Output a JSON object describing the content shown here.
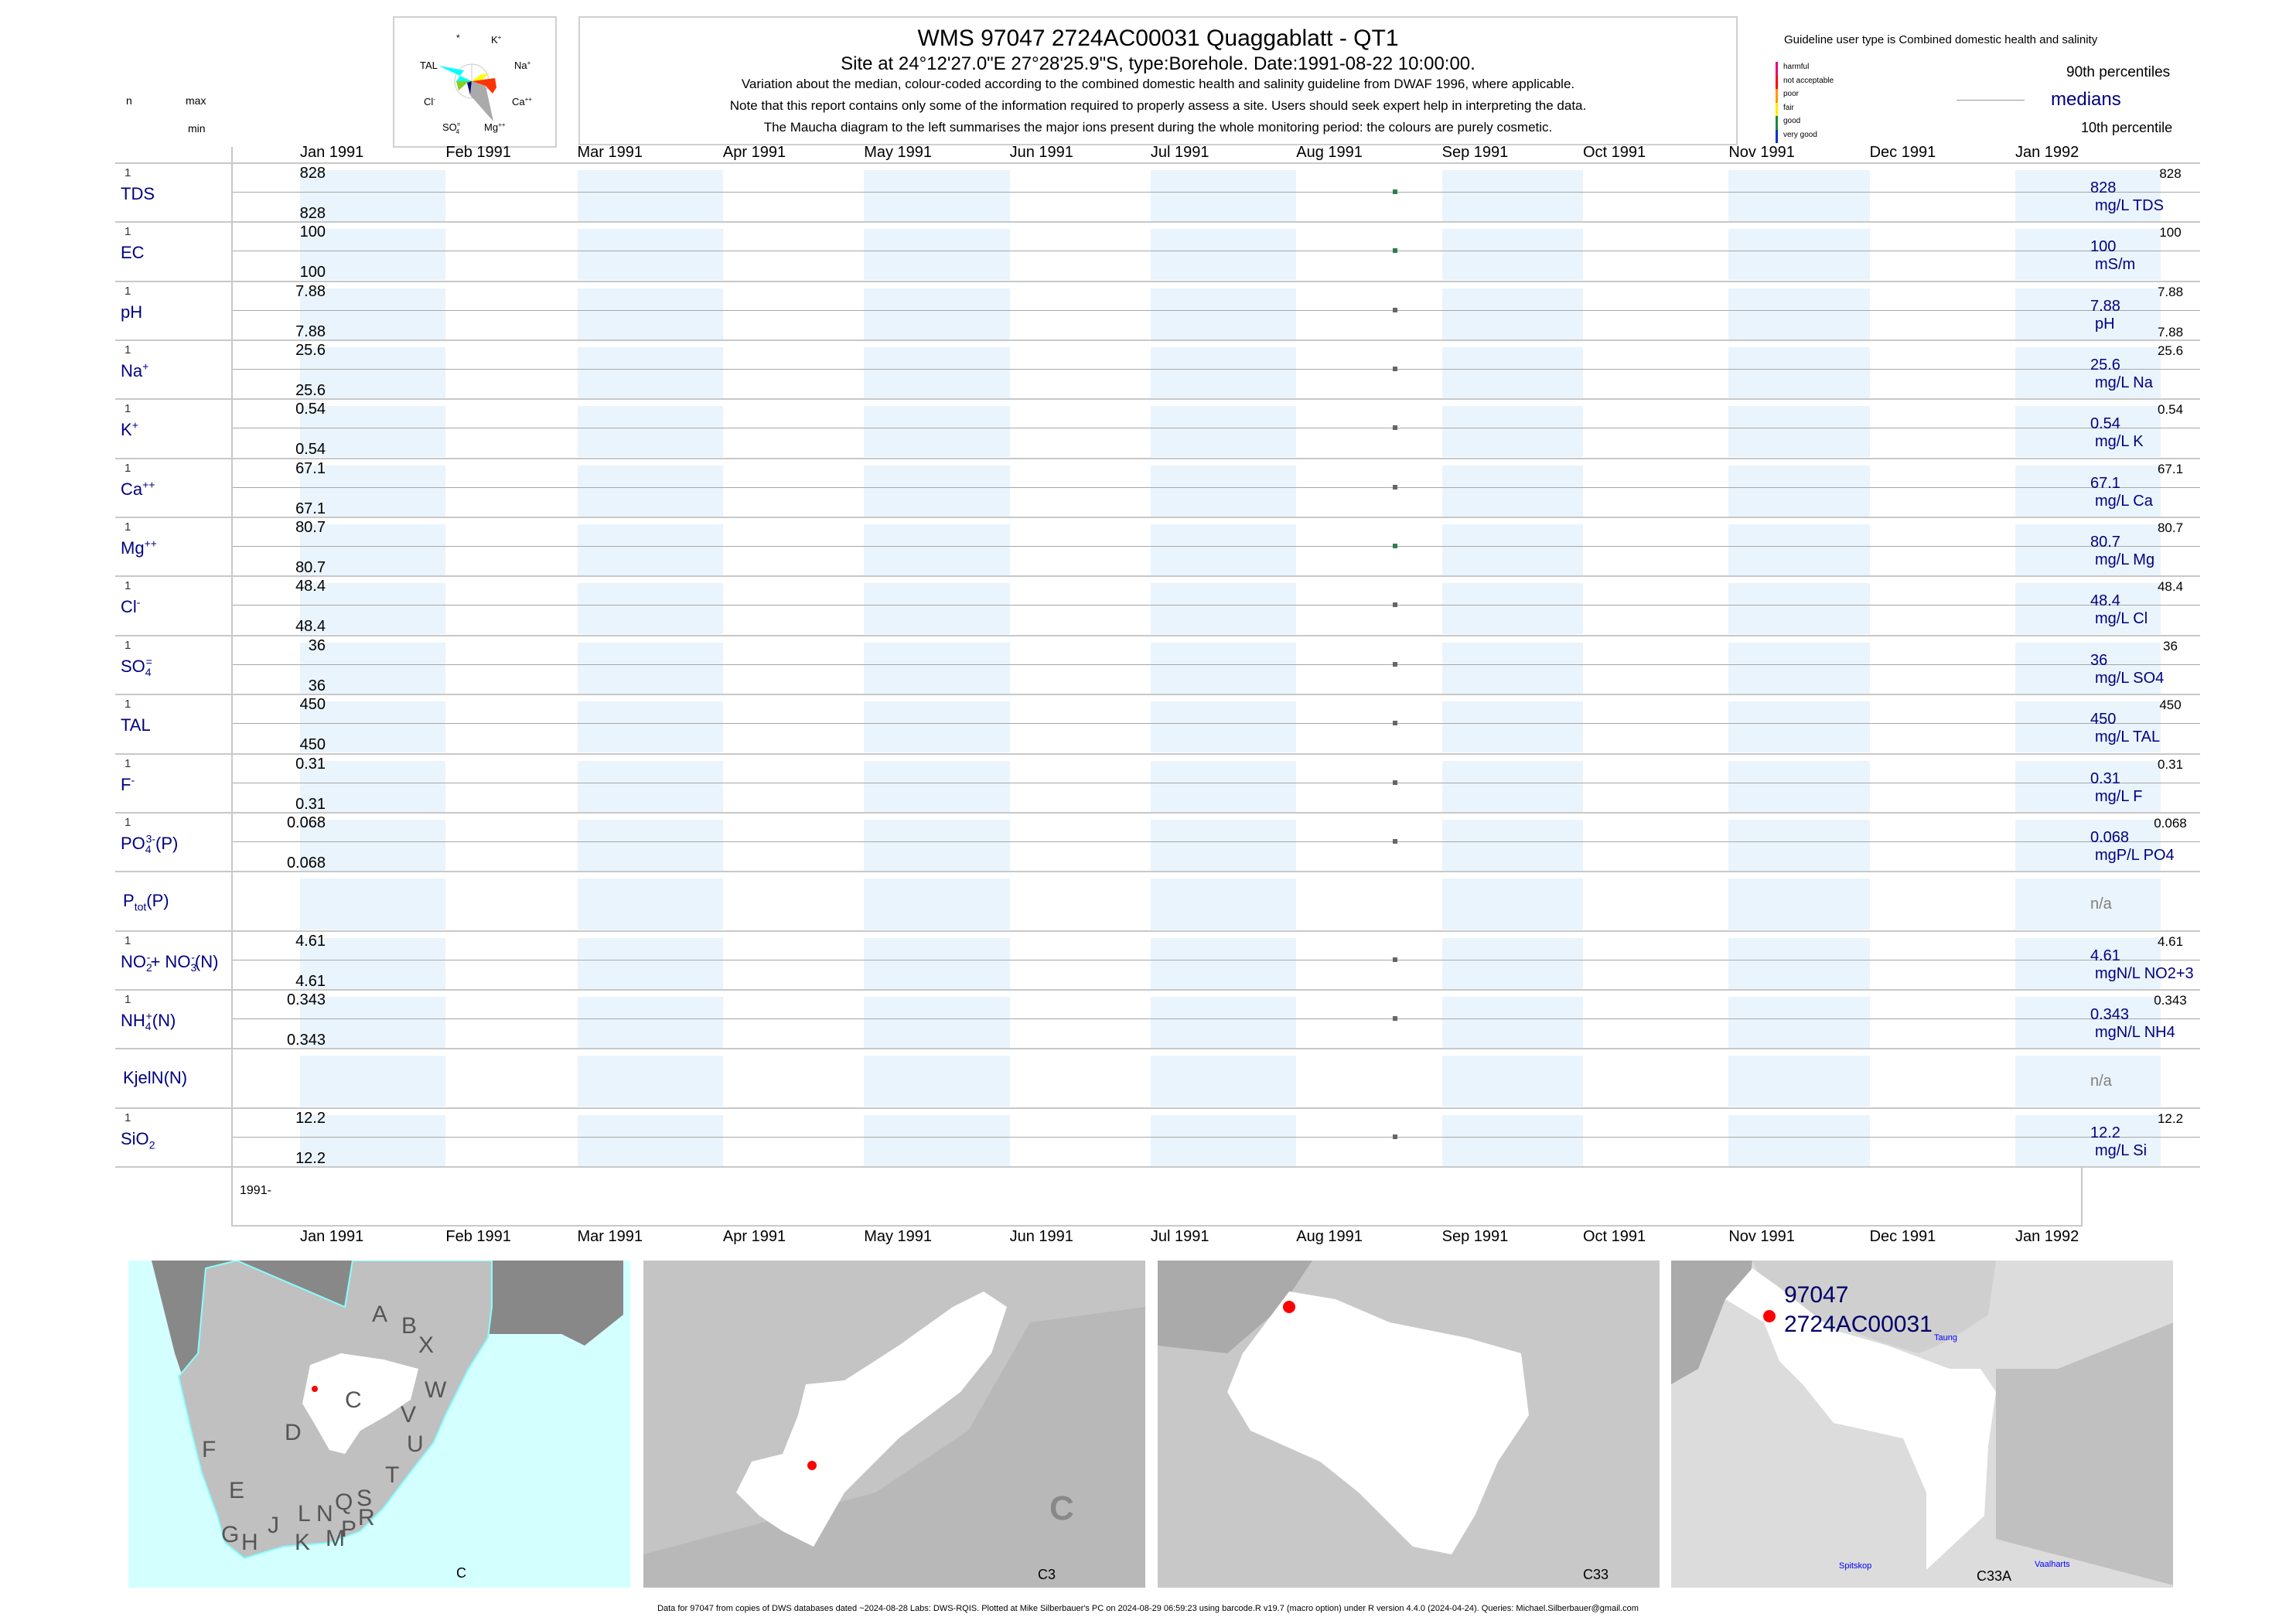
{
  "header": {
    "title": "WMS 97047 2724AC00031 Quaggablatt - QT1",
    "subtitle": "Site at 24°12'27.0\"E 27°28'25.9\"S, type:Borehole. Date:1991-08-22 10:00:00.",
    "line1": "Variation about the median,  colour-coded according to the combined domestic health and salinity guideline from DWAF 1996, where applicable.",
    "line2": "Note that this report contains only some of the information required to properly assess a site. Users should seek expert help in interpreting the data.",
    "line3": "The Maucha diagram to the left summarises the major ions present during the whole monitoring period: the colours are purely cosmetic."
  },
  "maucha": {
    "labels": {
      "star": "*",
      "k": "K",
      "k_sup": "+",
      "na": "Na",
      "na_sup": "+",
      "tal": "TAL",
      "cl": "Cl",
      "cl_sup": "-",
      "ca": "Ca",
      "ca_sup": "++",
      "so4": "SO",
      "so4_sub": "4",
      "so4_sup": "=",
      "mg": "Mg",
      "mg_sup": "++"
    },
    "colors": {
      "tal": "#00ffff",
      "na": "#ffff00",
      "ca": "#ff3300",
      "mg": "#aaaaaa",
      "so4": "#000080",
      "cl": "#88cc22"
    }
  },
  "legend": {
    "guideline_title": "Guideline user type is Combined domestic health and salinity",
    "classes": [
      {
        "label": "harmful",
        "color": "#e0007f"
      },
      {
        "label": "not acceptable",
        "color": "#ff0000"
      },
      {
        "label": "poor",
        "color": "#ff9900"
      },
      {
        "label": "fair",
        "color": "#ffee00"
      },
      {
        "label": "good",
        "color": "#1a8a3a"
      },
      {
        "label": "very good",
        "color": "#0033cc"
      }
    ],
    "p90": "90th percentiles",
    "median": "medians",
    "p10": "10th percentile"
  },
  "column_headers": {
    "n": "n",
    "max": "max",
    "min": "min"
  },
  "chart_data": {
    "type": "scatter",
    "x_axis": {
      "type": "date",
      "range": [
        "1991-01-01",
        "1992-01-31"
      ],
      "tick_labels": [
        "Jan 1991",
        "Feb 1991",
        "Mar 1991",
        "Apr 1991",
        "May 1991",
        "Jun 1991",
        "Jul 1991",
        "Aug 1991",
        "Sep 1991",
        "Oct 1991",
        "Nov 1991",
        "Dec 1991",
        "Jan 1992"
      ]
    },
    "year_label": "1991-",
    "sample_date": "1991-08-22",
    "variables": [
      {
        "id": "tds",
        "name": [
          {
            "t": "TDS"
          }
        ],
        "n": "1",
        "max": "828",
        "min": "828",
        "median": "828",
        "unit": "mg/L TDS",
        "p90": "828",
        "p10": "",
        "value": 828,
        "class_color": "#2e7d4f"
      },
      {
        "id": "ec",
        "name": [
          {
            "t": "EC"
          }
        ],
        "n": "1",
        "max": "100",
        "min": "100",
        "median": "100",
        "unit": "mS/m",
        "p90": "100",
        "p10": "",
        "value": 100,
        "class_color": "#2e7d4f"
      },
      {
        "id": "ph",
        "name": [
          {
            "t": "pH"
          }
        ],
        "n": "1",
        "max": "7.88",
        "min": "7.88",
        "median": "7.88",
        "unit": "pH",
        "p90": "7.88",
        "p10": "7.88",
        "value": 7.88,
        "class_color": "#666666"
      },
      {
        "id": "na",
        "name": [
          {
            "t": "Na"
          },
          {
            "sup": "+"
          }
        ],
        "n": "1",
        "max": "25.6",
        "min": "25.6",
        "median": "25.6",
        "unit": "mg/L Na",
        "p90": "25.6",
        "p10": "",
        "value": 25.6,
        "class_color": "#666666"
      },
      {
        "id": "k",
        "name": [
          {
            "t": "K"
          },
          {
            "sup": "+"
          }
        ],
        "n": "1",
        "max": "0.54",
        "min": "0.54",
        "median": "0.54",
        "unit": "mg/L K",
        "p90": "0.54",
        "p10": "",
        "value": 0.54,
        "class_color": "#666666"
      },
      {
        "id": "ca",
        "name": [
          {
            "t": "Ca"
          },
          {
            "sup": "++"
          }
        ],
        "n": "1",
        "max": "67.1",
        "min": "67.1",
        "median": "67.1",
        "unit": "mg/L Ca",
        "p90": "67.1",
        "p10": "",
        "value": 67.1,
        "class_color": "#666666"
      },
      {
        "id": "mg",
        "name": [
          {
            "t": "Mg"
          },
          {
            "sup": "++"
          }
        ],
        "n": "1",
        "max": "80.7",
        "min": "80.7",
        "median": "80.7",
        "unit": "mg/L Mg",
        "p90": "80.7",
        "p10": "",
        "value": 80.7,
        "class_color": "#2e7d4f"
      },
      {
        "id": "cl",
        "name": [
          {
            "t": "Cl"
          },
          {
            "sup": "-"
          }
        ],
        "n": "1",
        "max": "48.4",
        "min": "48.4",
        "median": "48.4",
        "unit": "mg/L Cl",
        "p90": "48.4",
        "p10": "",
        "value": 48.4,
        "class_color": "#666666"
      },
      {
        "id": "so4",
        "name": [
          {
            "t": "SO"
          },
          {
            "sub": "4"
          },
          {
            "sup": "="
          }
        ],
        "n": "1",
        "max": "36",
        "min": "36",
        "median": "36",
        "unit": "mg/L SO4",
        "p90": "36",
        "p10": "",
        "value": 36,
        "class_color": "#666666"
      },
      {
        "id": "tal",
        "name": [
          {
            "t": "TAL"
          }
        ],
        "n": "1",
        "max": "450",
        "min": "450",
        "median": "450",
        "unit": "mg/L TAL",
        "p90": "450",
        "p10": "",
        "value": 450,
        "class_color": "#666666"
      },
      {
        "id": "f",
        "name": [
          {
            "t": "F"
          },
          {
            "sup": "-"
          }
        ],
        "n": "1",
        "max": "0.31",
        "min": "0.31",
        "median": "0.31",
        "unit": "mg/L F",
        "p90": "0.31",
        "p10": "",
        "value": 0.31,
        "class_color": "#666666"
      },
      {
        "id": "po4",
        "name": [
          {
            "t": "PO"
          },
          {
            "sub": "4"
          },
          {
            "sup": "3-"
          },
          {
            "t": "(P)"
          }
        ],
        "n": "1",
        "max": "0.068",
        "min": "0.068",
        "median": "0.068",
        "unit": "mgP/L PO4",
        "p90": "0.068",
        "p10": "",
        "value": 0.068,
        "class_color": "#666666"
      },
      {
        "id": "ptot",
        "name": [
          {
            "t": "P"
          },
          {
            "sub": "tot"
          },
          {
            "t": "(P)"
          }
        ],
        "n": "",
        "max": "",
        "min": "",
        "median": "n/a",
        "unit": "",
        "p90": "",
        "p10": "",
        "value": null,
        "class_color": ""
      },
      {
        "id": "nox",
        "name": [
          {
            "t": "NO"
          },
          {
            "sub": "2"
          },
          {
            "sup": "-"
          },
          {
            "t": "+ NO"
          },
          {
            "sub": "3"
          },
          {
            "sup": "-"
          },
          {
            "t": "(N)"
          }
        ],
        "n": "1",
        "max": "4.61",
        "min": "4.61",
        "median": "4.61",
        "unit": "mgN/L NO2+3",
        "p90": "4.61",
        "p10": "",
        "value": 4.61,
        "class_color": "#666666"
      },
      {
        "id": "nh4",
        "name": [
          {
            "t": "NH"
          },
          {
            "sub": "4"
          },
          {
            "sup": "+"
          },
          {
            "t": "(N)"
          }
        ],
        "n": "1",
        "max": "0.343",
        "min": "0.343",
        "median": "0.343",
        "unit": "mgN/L NH4",
        "p90": "0.343",
        "p10": "",
        "value": 0.343,
        "class_color": "#666666"
      },
      {
        "id": "kjeln",
        "name": [
          {
            "t": "KjelN(N)"
          }
        ],
        "n": "",
        "max": "",
        "min": "",
        "median": "n/a",
        "unit": "",
        "p90": "",
        "p10": "",
        "value": null,
        "class_color": ""
      },
      {
        "id": "sio2",
        "name": [
          {
            "t": "SiO"
          },
          {
            "sub": "2"
          }
        ],
        "n": "1",
        "max": "12.2",
        "min": "12.2",
        "median": "12.2",
        "unit": "mg/L Si",
        "p90": "12.2",
        "p10": "",
        "value": 12.2,
        "class_color": "#666666"
      }
    ]
  },
  "maps": [
    {
      "caption": "C",
      "letters": [
        "A",
        "B",
        "X",
        "W",
        "C",
        "V",
        "U",
        "D",
        "F",
        "T",
        "E",
        "S",
        "Q",
        "L",
        "N",
        "R",
        "J",
        "G",
        "P",
        "M",
        "H",
        "K"
      ]
    },
    {
      "caption": "C3",
      "big_letter": "C"
    },
    {
      "caption": "C33"
    },
    {
      "caption": "C33A",
      "site_id": "97047",
      "site_code": "2724AC00031",
      "places": [
        "Taung",
        "Spitskop",
        "Vaalharts"
      ]
    }
  ],
  "footer": "Data for 97047 from copies of DWS databases dated ~2024-08-28 Labs: DWS-RQIS. Plotted at Mike Silberbauer's PC on 2024-08-29 06:59:23 using barcode.R v19.7 (macro option) under R version 4.4.0 (2024-04-24). Queries: Michael.Silberbauer@gmail.com"
}
